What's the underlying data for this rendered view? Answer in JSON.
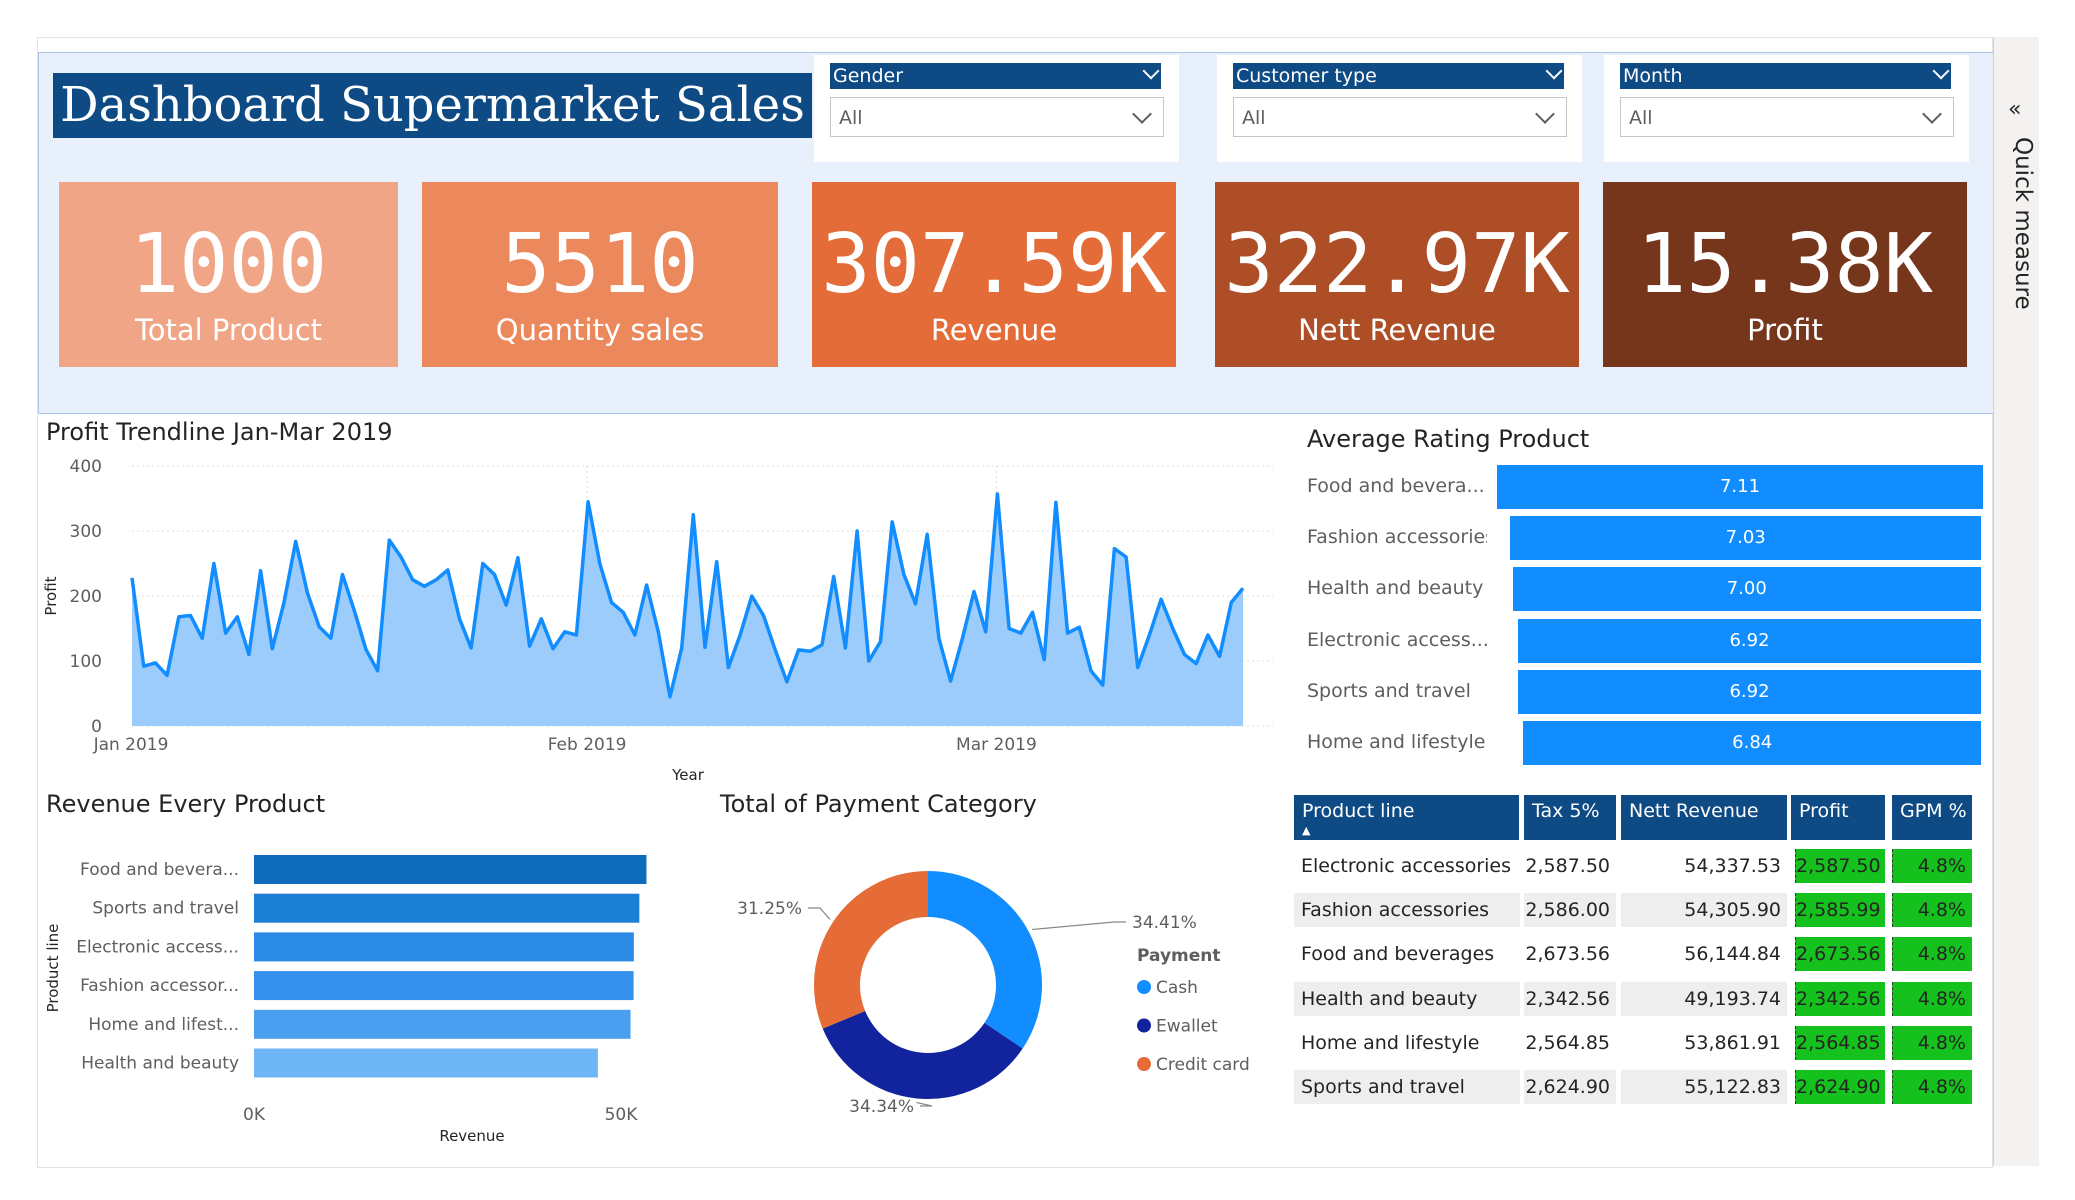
{
  "title": "Dashboard Supermarket Sales",
  "slicers": [
    {
      "label": "Gender",
      "value": "All"
    },
    {
      "label": "Customer type",
      "value": "All"
    },
    {
      "label": "Month",
      "value": "All"
    }
  ],
  "kpis": [
    {
      "value": "1000",
      "label": "Total Product",
      "color": "#f0a586"
    },
    {
      "value": "5510",
      "label": "Quantity sales",
      "color": "#eb895d"
    },
    {
      "value": "307.59K",
      "label": "Revenue",
      "color": "#e46c38"
    },
    {
      "value": "322.97K",
      "label": "Nett Revenue",
      "color": "#ae4e27"
    },
    {
      "value": "15.38K",
      "label": "Profit",
      "color": "#76361c"
    }
  ],
  "side_pane": {
    "label": "Quick measure",
    "icon": "double-chevron-left-icon"
  },
  "profit_trend": {
    "title": "Profit Trendline Jan-Mar 2019",
    "chart_data": {
      "type": "area",
      "title": "Profit Trendline Jan-Mar 2019",
      "xlabel": "Year",
      "ylabel": "Profit",
      "ylim": [
        0,
        400
      ],
      "yticks": [
        "0",
        "100",
        "200",
        "300",
        "400"
      ],
      "xticks": [
        "Jan 2019",
        "Feb 2019",
        "Mar 2019"
      ],
      "color": "#118dff",
      "fill": "#9cccfb",
      "values": [
        228,
        92,
        97,
        78,
        168,
        170,
        135,
        250,
        143,
        168,
        110,
        239,
        119,
        190,
        284,
        205,
        153,
        135,
        233,
        178,
        118,
        85,
        286,
        260,
        225,
        215,
        225,
        240,
        165,
        120,
        250,
        233,
        186,
        259,
        123,
        165,
        119,
        145,
        140,
        345,
        250,
        190,
        175,
        140,
        217,
        145,
        45,
        120,
        325,
        121,
        253,
        90,
        140,
        200,
        170,
        117,
        68,
        117,
        115,
        125,
        230,
        120,
        300,
        100,
        130,
        314,
        233,
        188,
        295,
        135,
        69,
        134,
        207,
        145,
        357,
        150,
        143,
        175,
        102,
        344,
        143,
        152,
        85,
        63,
        273,
        260,
        90,
        140,
        195,
        150,
        110,
        96,
        140,
        107,
        190,
        212
      ]
    }
  },
  "avg_rating": {
    "title": "Average Rating Product",
    "chart_data": {
      "type": "bar",
      "orientation": "horizontal",
      "categories": [
        "Food and bevera...",
        "Fashion accessories",
        "Health and beauty",
        "Electronic access...",
        "Sports and travel",
        "Home and lifestyle"
      ],
      "values": [
        7.11,
        7.03,
        7.0,
        6.92,
        6.92,
        6.84
      ],
      "labels": [
        "7.11",
        "7.03",
        "7.00",
        "6.92",
        "6.92",
        "6.84"
      ],
      "color": "#118dff"
    }
  },
  "revenue_product": {
    "title": "Revenue Every Product",
    "chart_data": {
      "type": "bar",
      "orientation": "horizontal",
      "categories": [
        "Food and bevera...",
        "Sports and travel",
        "Electronic access...",
        "Fashion accessor...",
        "Home and lifest...",
        "Health and beauty"
      ],
      "values": [
        53472,
        52498,
        51751,
        51719,
        51298,
        46851
      ],
      "colors": [
        "#0f6cbd",
        "#1c7fd6",
        "#2a8ae6",
        "#3591eb",
        "#4b9ff0",
        "#6fb6f7"
      ],
      "xlabel": "Revenue",
      "ylabel": "Product line",
      "xticks": [
        "0K",
        "50K"
      ],
      "xlim": [
        0,
        60000
      ]
    }
  },
  "payment": {
    "title": "Total of Payment Category",
    "chart_data": {
      "type": "pie",
      "donut": true,
      "legend_title": "Payment",
      "categories": [
        "Cash",
        "Ewallet",
        "Credit card"
      ],
      "values": [
        34.41,
        34.34,
        31.25
      ],
      "labels": [
        "34.41%",
        "34.34%",
        "31.25%"
      ],
      "colors": [
        "#118dff",
        "#12239e",
        "#e66c37"
      ]
    }
  },
  "product_table": {
    "columns": [
      "Product line",
      "Tax 5%",
      "Nett Revenue",
      "Profit",
      "GPM %"
    ],
    "rows": [
      [
        "Electronic accessories",
        "2,587.50",
        "54,337.53",
        "2,587.50",
        "4.8%"
      ],
      [
        "Fashion accessories",
        "2,586.00",
        "54,305.90",
        "2,585.99",
        "4.8%"
      ],
      [
        "Food and beverages",
        "2,673.56",
        "56,144.84",
        "2,673.56",
        "4.8%"
      ],
      [
        "Health and beauty",
        "2,342.56",
        "49,193.74",
        "2,342.56",
        "4.8%"
      ],
      [
        "Home and lifestyle",
        "2,564.85",
        "53,861.91",
        "2,564.85",
        "4.8%"
      ],
      [
        "Sports and travel",
        "2,624.90",
        "55,122.83",
        "2,624.90",
        "4.8%"
      ]
    ]
  }
}
